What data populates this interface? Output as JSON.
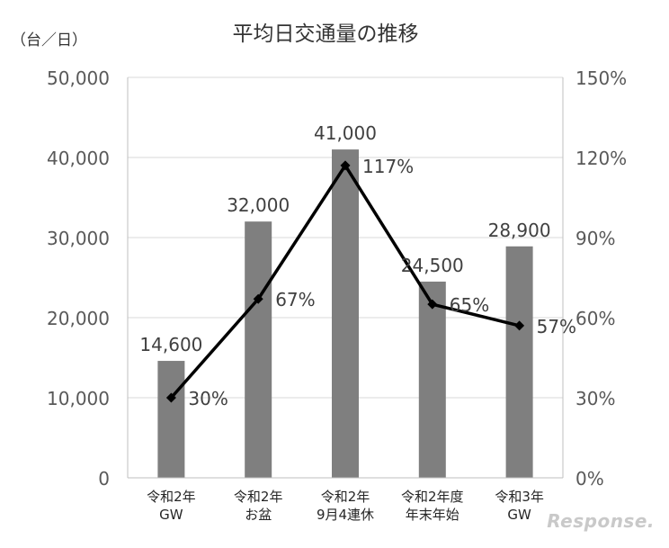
{
  "chart_data": {
    "type": "bar",
    "title": "平均日交通量の推移",
    "unit_label": "（台／日）",
    "categories": [
      [
        "令和2年",
        "GW"
      ],
      [
        "令和2年",
        "お盆"
      ],
      [
        "令和2年",
        "9月4連休"
      ],
      [
        "令和2年度",
        "年末年始"
      ],
      [
        "令和3年",
        "GW"
      ]
    ],
    "series": [
      {
        "type": "bar",
        "axis": "left",
        "values": [
          14600,
          32000,
          41000,
          24500,
          28900
        ],
        "data_labels": [
          "14,600",
          "32,000",
          "41,000",
          "24,500",
          "28,900"
        ],
        "color": "#7f7f7f"
      },
      {
        "type": "line",
        "axis": "right",
        "values": [
          30,
          67,
          117,
          65,
          57
        ],
        "data_labels": [
          "30%",
          "67%",
          "117%",
          "65%",
          "57%"
        ],
        "color": "#000000"
      }
    ],
    "y_left": {
      "min": 0,
      "max": 50000,
      "ticks": [
        "0",
        "10,000",
        "20,000",
        "30,000",
        "40,000",
        "50,000"
      ]
    },
    "y_right": {
      "min": 0,
      "max": 150,
      "ticks": [
        "0%",
        "30%",
        "60%",
        "90%",
        "120%",
        "150%"
      ]
    },
    "grid": true
  },
  "watermark": "Response."
}
